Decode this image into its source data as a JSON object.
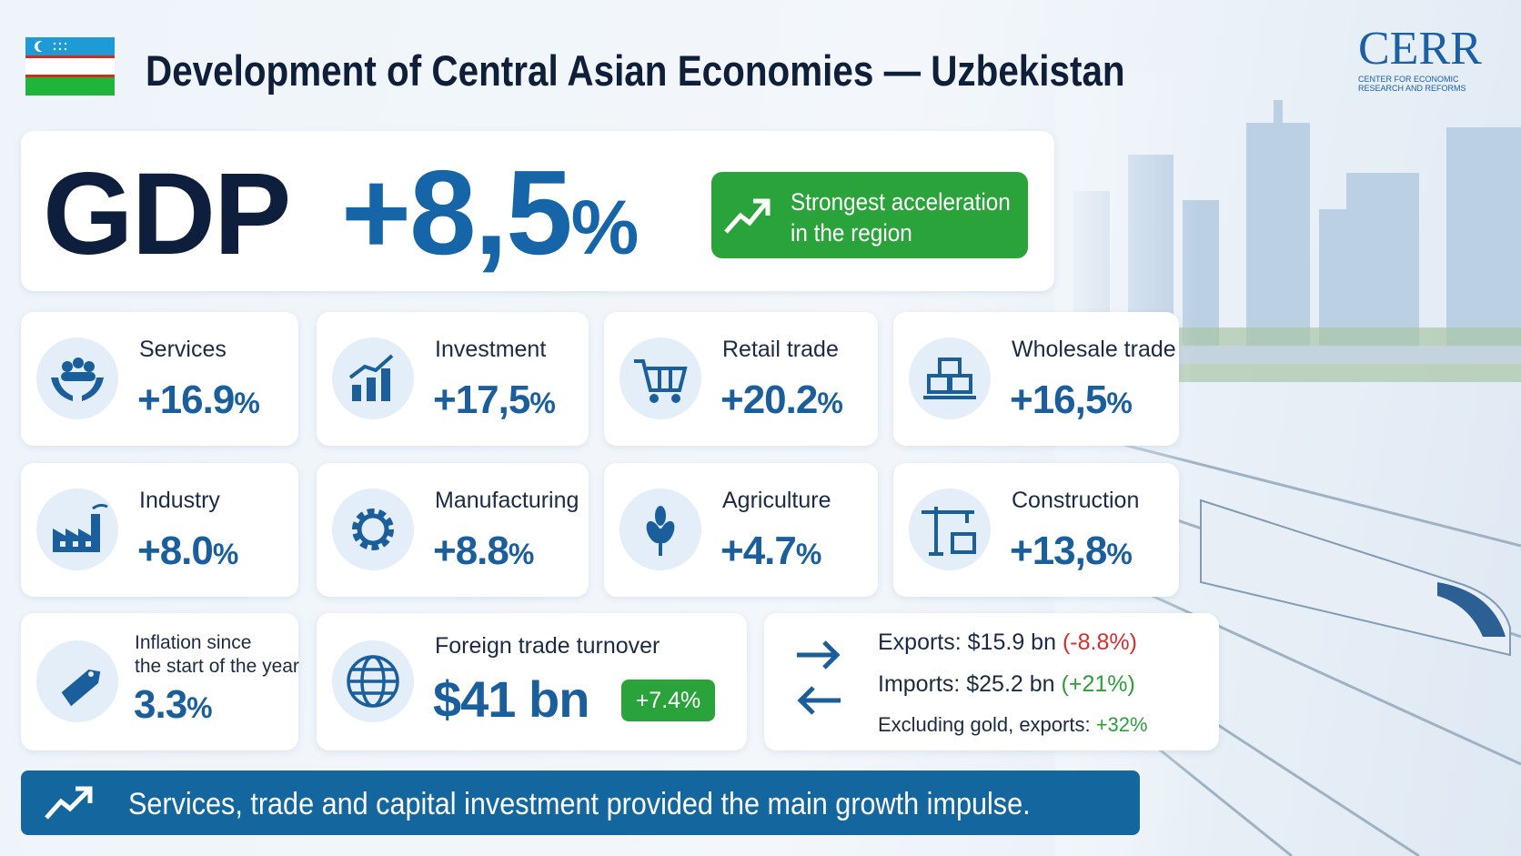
{
  "header": {
    "title": "Development of Central Asian Economies — Uzbekistan",
    "logo": {
      "name": "CERR",
      "line_1": "CENTER FOR ECONOMIC",
      "line_2": "RESEARCH AND REFORMS"
    }
  },
  "gdp": {
    "label": "GDP",
    "value": "+8,5",
    "unit": "%",
    "badge": [
      "Strongest acceleration",
      "in the region"
    ]
  },
  "sectors": [
    {
      "name": "Services",
      "value": "+16.9",
      "unit": "%"
    },
    {
      "name": "Investment",
      "value": "+17,5",
      "unit": "%"
    },
    {
      "name": "Retail trade",
      "value": "+20.2",
      "unit": "%"
    },
    {
      "name": "Wholesale trade",
      "value": "+16,5",
      "unit": "%"
    },
    {
      "name": "Industry",
      "value": "+8.0",
      "unit": "%"
    },
    {
      "name": "Manufacturing",
      "value": "+8.8",
      "unit": "%"
    },
    {
      "name": "Agriculture",
      "value": "+4.7",
      "unit": "%"
    },
    {
      "name": "Construction",
      "value": "+13,8",
      "unit": "%"
    }
  ],
  "inflation": {
    "label": [
      "Inflation since",
      "the start of the year"
    ],
    "value": "3.3",
    "unit": "%"
  },
  "trade": {
    "label": "Foreign trade turnover",
    "value": "$41 bn",
    "change": "+7.4%"
  },
  "flows": [
    {
      "label": "Exports:",
      "value": "$15.9 bn",
      "change": "(-8.8%)"
    },
    {
      "label": "Imports:",
      "value": "$25.2 bn",
      "change": "(+21%)"
    },
    {
      "label": "Excluding gold, exports:",
      "change": "+32%"
    }
  ],
  "footer": "Services, trade and capital investment provided the main growth impulse."
}
